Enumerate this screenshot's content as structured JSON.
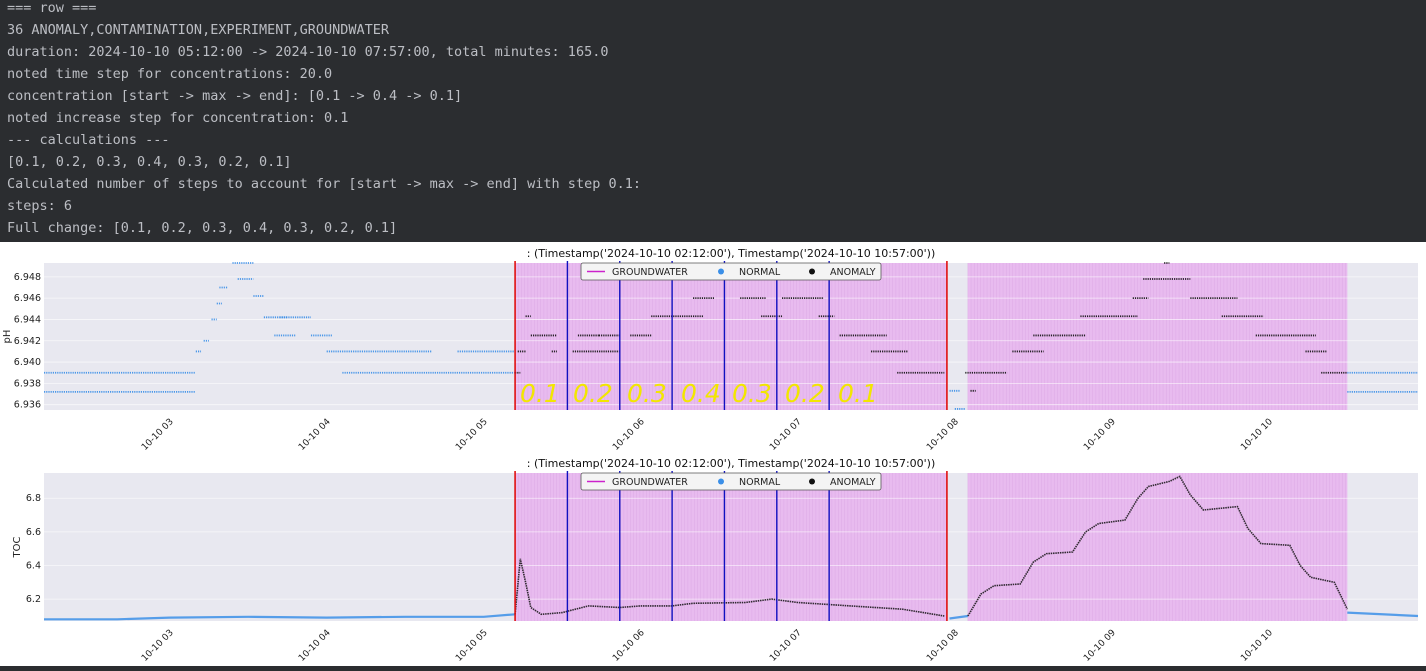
{
  "console": {
    "lines": [
      "=== row ===",
      "36 ANOMALY,CONTAMINATION,EXPERIMENT,GROUNDWATER",
      "duration: 2024-10-10 05:12:00 -> 2024-10-10 07:57:00, total minutes: 165.0",
      "noted time step for concentrations: 20.0",
      "concentration [start -> max -> end]: [0.1 -> 0.4 -> 0.1]",
      "noted increase step for concentration: 0.1",
      "--- calculations ---",
      "[0.1, 0.2, 0.3, 0.4, 0.3, 0.2, 0.1]",
      "Calculated number of steps to account for [start -> max -> end] with step 0.1:",
      "steps: 6",
      "Full change: [0.1, 0.2, 0.3, 0.4, 0.3, 0.2, 0.1]"
    ]
  },
  "colors": {
    "normal": "#3b8fe8",
    "anomaly": "#111111",
    "groundwater_legend": "#cc22cc",
    "shade": "#e8b8ee",
    "axes_bg": "#e8e8f0",
    "red": "#e01010",
    "blue": "#1010c0",
    "annotation": "#f2e600"
  },
  "chart_data": [
    {
      "type": "scatter",
      "title": ": (Timestamp('2024-10-10 02:12:00'), Timestamp('2024-10-10 10:57:00'))",
      "ylabel": "pH",
      "xlabel": "",
      "x_range": [
        "2024-10-10 02:12",
        "2024-10-10 10:57"
      ],
      "ylim": [
        6.9355,
        6.9493
      ],
      "y_ticks": [
        "6.936",
        "6.938",
        "6.940",
        "6.942",
        "6.944",
        "6.946",
        "6.948"
      ],
      "x_ticks": [
        "10-10 03",
        "10-10 04",
        "10-10 05",
        "10-10 06",
        "10-10 07",
        "10-10 08",
        "10-10 09",
        "10-10 10"
      ],
      "legend": [
        "GROUNDWATER",
        "NORMAL",
        "ANOMALY"
      ],
      "legend_position": "top-center",
      "shaded_regions": [
        [
          "2024-10-10 05:12",
          "2024-10-10 07:57"
        ],
        [
          "2024-10-10 08:05",
          "2024-10-10 10:30"
        ]
      ],
      "red_lines": [
        "2024-10-10 05:12",
        "2024-10-10 07:57"
      ],
      "blue_lines": [
        "2024-10-10 05:32",
        "2024-10-10 05:52",
        "2024-10-10 06:12",
        "2024-10-10 06:32",
        "2024-10-10 06:52",
        "2024-10-10 07:12"
      ],
      "annotations": [
        "0.1",
        "0.2",
        "0.3",
        "0.4",
        "0.3",
        "0.2",
        "0.1"
      ],
      "series": [
        {
          "name": "NORMAL",
          "segments": [
            [
              "2024-10-10 02:12",
              "2024-10-10 03:10",
              6.9372
            ],
            [
              "2024-10-10 02:12",
              "2024-10-10 03:10",
              6.939
            ],
            [
              "2024-10-10 03:10",
              "2024-10-10 03:12",
              6.941
            ],
            [
              "2024-10-10 03:13",
              "2024-10-10 03:15",
              6.942
            ],
            [
              "2024-10-10 03:16",
              "2024-10-10 03:18",
              6.944
            ],
            [
              "2024-10-10 03:18",
              "2024-10-10 03:20",
              6.9455
            ],
            [
              "2024-10-10 03:19",
              "2024-10-10 03:22",
              6.947
            ],
            [
              "2024-10-10 03:24",
              "2024-10-10 03:32",
              6.9493
            ],
            [
              "2024-10-10 03:26",
              "2024-10-10 03:32",
              6.9478
            ],
            [
              "2024-10-10 03:32",
              "2024-10-10 03:36",
              6.9462
            ],
            [
              "2024-10-10 03:36",
              "2024-10-10 03:45",
              6.9442
            ],
            [
              "2024-10-10 03:42",
              "2024-10-10 03:54",
              6.9442
            ],
            [
              "2024-10-10 03:40",
              "2024-10-10 03:48",
              6.9425
            ],
            [
              "2024-10-10 03:54",
              "2024-10-10 04:02",
              6.9425
            ],
            [
              "2024-10-10 04:00",
              "2024-10-10 04:40",
              6.941
            ],
            [
              "2024-10-10 04:06",
              "2024-10-10 05:12",
              6.939
            ],
            [
              "2024-10-10 04:50",
              "2024-10-10 05:12",
              6.941
            ],
            [
              "2024-10-10 07:58",
              "2024-10-10 08:02",
              6.9373
            ],
            [
              "2024-10-10 08:00",
              "2024-10-10 08:04",
              6.9356
            ],
            [
              "2024-10-10 10:30",
              "2024-10-10 10:57",
              6.939
            ],
            [
              "2024-10-10 10:30",
              "2024-10-10 10:57",
              6.9372
            ]
          ]
        },
        {
          "name": "ANOMALY",
          "segments": [
            [
              "2024-10-10 05:12",
              "2024-10-10 05:14",
              6.939
            ],
            [
              "2024-10-10 05:13",
              "2024-10-10 05:16",
              6.941
            ],
            [
              "2024-10-10 05:16",
              "2024-10-10 05:18",
              6.9443
            ],
            [
              "2024-10-10 05:18",
              "2024-10-10 05:28",
              6.9425
            ],
            [
              "2024-10-10 05:26",
              "2024-10-10 05:28",
              6.941
            ],
            [
              "2024-10-10 05:34",
              "2024-10-10 05:52",
              6.941
            ],
            [
              "2024-10-10 05:36",
              "2024-10-10 05:44",
              6.9425
            ],
            [
              "2024-10-10 05:44",
              "2024-10-10 05:52",
              6.9425
            ],
            [
              "2024-10-10 05:56",
              "2024-10-10 06:04",
              6.9425
            ],
            [
              "2024-10-10 06:04",
              "2024-10-10 06:24",
              6.9443
            ],
            [
              "2024-10-10 06:20",
              "2024-10-10 06:28",
              6.946
            ],
            [
              "2024-10-10 06:24",
              "2024-10-10 06:40",
              6.9478
            ],
            [
              "2024-10-10 06:38",
              "2024-10-10 06:48",
              6.946
            ],
            [
              "2024-10-10 06:46",
              "2024-10-10 06:54",
              6.9443
            ],
            [
              "2024-10-10 06:54",
              "2024-10-10 07:10",
              6.946
            ],
            [
              "2024-10-10 07:08",
              "2024-10-10 07:14",
              6.9443
            ],
            [
              "2024-10-10 07:16",
              "2024-10-10 07:34",
              6.9425
            ],
            [
              "2024-10-10 07:28",
              "2024-10-10 07:42",
              6.941
            ],
            [
              "2024-10-10 07:38",
              "2024-10-10 07:56",
              6.939
            ],
            [
              "2024-10-10 08:04",
              "2024-10-10 08:20",
              6.939
            ],
            [
              "2024-10-10 08:06",
              "2024-10-10 08:08",
              6.9373
            ],
            [
              "2024-10-10 08:22",
              "2024-10-10 08:34",
              6.941
            ],
            [
              "2024-10-10 08:30",
              "2024-10-10 08:50",
              6.9425
            ],
            [
              "2024-10-10 08:48",
              "2024-10-10 09:10",
              6.9443
            ],
            [
              "2024-10-10 09:08",
              "2024-10-10 09:14",
              6.946
            ],
            [
              "2024-10-10 09:12",
              "2024-10-10 09:30",
              6.9478
            ],
            [
              "2024-10-10 09:20",
              "2024-10-10 09:22",
              6.9493
            ],
            [
              "2024-10-10 09:30",
              "2024-10-10 09:48",
              6.946
            ],
            [
              "2024-10-10 09:42",
              "2024-10-10 09:58",
              6.9443
            ],
            [
              "2024-10-10 09:55",
              "2024-10-10 10:18",
              6.9425
            ],
            [
              "2024-10-10 10:14",
              "2024-10-10 10:22",
              6.941
            ],
            [
              "2024-10-10 10:20",
              "2024-10-10 10:30",
              6.939
            ]
          ]
        }
      ]
    },
    {
      "type": "line",
      "title": ": (Timestamp('2024-10-10 02:12:00'), Timestamp('2024-10-10 10:57:00'))",
      "ylabel": "TOC",
      "xlabel": "",
      "x_range": [
        "2024-10-10 02:12",
        "2024-10-10 10:57"
      ],
      "ylim": [
        6.07,
        6.95
      ],
      "y_ticks": [
        "6.2",
        "6.4",
        "6.6",
        "6.8"
      ],
      "x_ticks": [
        "10-10 03",
        "10-10 04",
        "10-10 05",
        "10-10 06",
        "10-10 07",
        "10-10 08",
        "10-10 09",
        "10-10 10"
      ],
      "legend": [
        "GROUNDWATER",
        "NORMAL",
        "ANOMALY"
      ],
      "legend_position": "top-center",
      "shaded_regions": [
        [
          "2024-10-10 05:12",
          "2024-10-10 07:57"
        ],
        [
          "2024-10-10 08:05",
          "2024-10-10 10:30"
        ]
      ],
      "red_lines": [
        "2024-10-10 05:12",
        "2024-10-10 07:57"
      ],
      "blue_lines": [
        "2024-10-10 05:32",
        "2024-10-10 05:52",
        "2024-10-10 06:12",
        "2024-10-10 06:32",
        "2024-10-10 06:52",
        "2024-10-10 07:12"
      ],
      "series": [
        {
          "name": "NORMAL",
          "points": [
            [
              "2024-10-10 02:12",
              6.08
            ],
            [
              "2024-10-10 02:40",
              6.08
            ],
            [
              "2024-10-10 03:00",
              6.09
            ],
            [
              "2024-10-10 03:30",
              6.095
            ],
            [
              "2024-10-10 04:00",
              6.09
            ],
            [
              "2024-10-10 04:30",
              6.095
            ],
            [
              "2024-10-10 05:00",
              6.095
            ],
            [
              "2024-10-10 05:12",
              6.11
            ]
          ]
        },
        {
          "name": "ANOMALY",
          "points": [
            [
              "2024-10-10 05:12",
              6.11
            ],
            [
              "2024-10-10 05:14",
              6.44
            ],
            [
              "2024-10-10 05:16",
              6.3
            ],
            [
              "2024-10-10 05:18",
              6.15
            ],
            [
              "2024-10-10 05:22",
              6.11
            ],
            [
              "2024-10-10 05:30",
              6.12
            ],
            [
              "2024-10-10 05:40",
              6.16
            ],
            [
              "2024-10-10 05:52",
              6.15
            ],
            [
              "2024-10-10 06:00",
              6.16
            ],
            [
              "2024-10-10 06:12",
              6.16
            ],
            [
              "2024-10-10 06:20",
              6.175
            ],
            [
              "2024-10-10 06:40",
              6.18
            ],
            [
              "2024-10-10 06:50",
              6.2
            ],
            [
              "2024-10-10 07:00",
              6.18
            ],
            [
              "2024-10-10 07:20",
              6.16
            ],
            [
              "2024-10-10 07:40",
              6.14
            ],
            [
              "2024-10-10 07:56",
              6.1
            ]
          ]
        },
        {
          "name": "NORMAL",
          "points": [
            [
              "2024-10-10 07:58",
              6.085
            ],
            [
              "2024-10-10 08:05",
              6.1
            ]
          ]
        },
        {
          "name": "ANOMALY",
          "points": [
            [
              "2024-10-10 08:05",
              6.1
            ],
            [
              "2024-10-10 08:10",
              6.23
            ],
            [
              "2024-10-10 08:15",
              6.28
            ],
            [
              "2024-10-10 08:25",
              6.29
            ],
            [
              "2024-10-10 08:30",
              6.42
            ],
            [
              "2024-10-10 08:35",
              6.47
            ],
            [
              "2024-10-10 08:45",
              6.48
            ],
            [
              "2024-10-10 08:50",
              6.6
            ],
            [
              "2024-10-10 08:55",
              6.65
            ],
            [
              "2024-10-10 09:05",
              6.67
            ],
            [
              "2024-10-10 09:10",
              6.8
            ],
            [
              "2024-10-10 09:14",
              6.87
            ],
            [
              "2024-10-10 09:22",
              6.9
            ],
            [
              "2024-10-10 09:26",
              6.93
            ],
            [
              "2024-10-10 09:30",
              6.82
            ],
            [
              "2024-10-10 09:35",
              6.73
            ],
            [
              "2024-10-10 09:48",
              6.75
            ],
            [
              "2024-10-10 09:52",
              6.62
            ],
            [
              "2024-10-10 09:57",
              6.53
            ],
            [
              "2024-10-10 10:08",
              6.52
            ],
            [
              "2024-10-10 10:12",
              6.4
            ],
            [
              "2024-10-10 10:16",
              6.33
            ],
            [
              "2024-10-10 10:25",
              6.3
            ],
            [
              "2024-10-10 10:30",
              6.14
            ]
          ]
        },
        {
          "name": "NORMAL",
          "points": [
            [
              "2024-10-10 10:30",
              6.12
            ],
            [
              "2024-10-10 10:57",
              6.1
            ]
          ]
        }
      ]
    }
  ]
}
